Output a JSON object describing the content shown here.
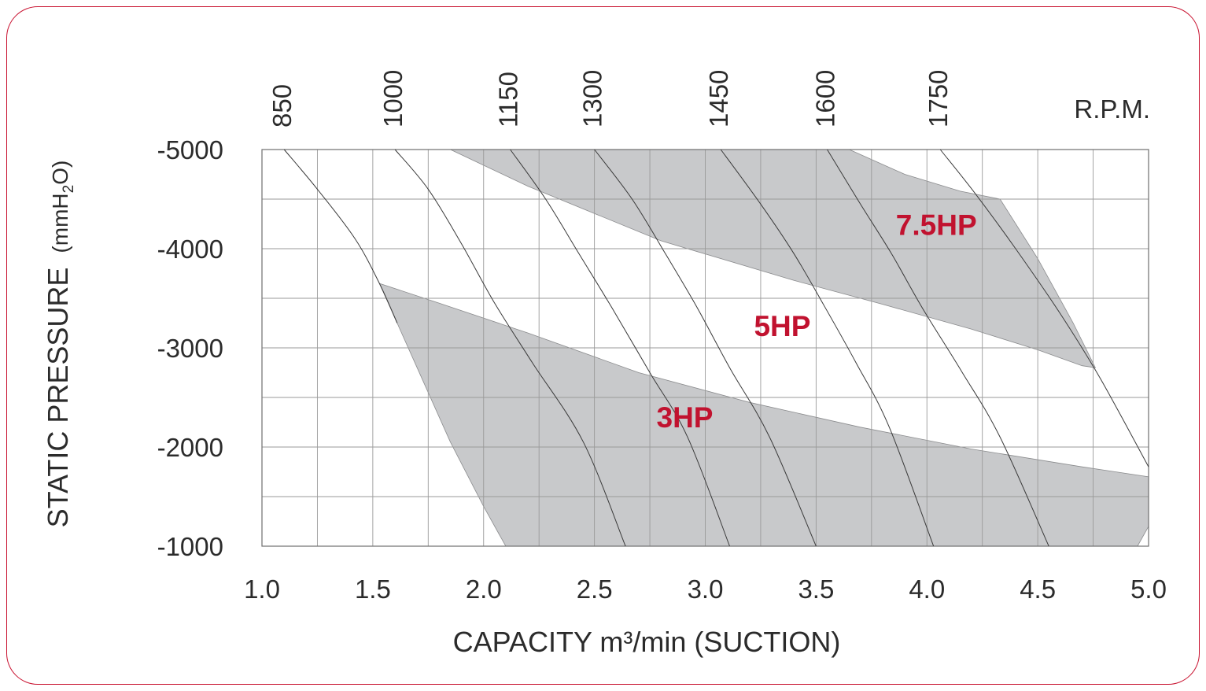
{
  "chart_data": {
    "type": "area",
    "xlabel": "CAPACITY m³/min (SUCTION)",
    "ylabel_main": "STATIC PRESSURE",
    "ylabel_unit_prefix": "(mmH",
    "ylabel_unit_sub": "2",
    "ylabel_unit_suffix": "O)",
    "rpm_label": "R.P.M.",
    "xlim": [
      1.0,
      5.0
    ],
    "ylim": [
      -1000,
      -5000
    ],
    "grid": true,
    "x_ticks": [
      "1.0",
      "1.5",
      "2.0",
      "2.5",
      "3.0",
      "3.5",
      "4.0",
      "4.5",
      "5.0"
    ],
    "x_tick_values": [
      1.0,
      1.5,
      2.0,
      2.5,
      3.0,
      3.5,
      4.0,
      4.5,
      5.0
    ],
    "y_ticks": [
      "-5000",
      "-4000",
      "-3000",
      "-2000",
      "-1000"
    ],
    "y_tick_values": [
      -5000,
      -4000,
      -3000,
      -2000,
      -1000
    ],
    "x_minor_step": 0.25,
    "y_minor_step": 500,
    "rpm_curves": [
      {
        "label": "850",
        "top_x": 1.1,
        "points": [
          [
            1.1,
            -5000
          ],
          [
            1.25,
            -4600
          ],
          [
            1.42,
            -4100
          ],
          [
            1.53,
            -3650
          ],
          [
            1.61,
            -3250
          ]
        ]
      },
      {
        "label": "1000",
        "top_x": 1.6,
        "points": [
          [
            1.6,
            -5000
          ],
          [
            1.75,
            -4600
          ],
          [
            1.9,
            -4050
          ],
          [
            2.05,
            -3450
          ],
          [
            2.22,
            -2850
          ],
          [
            2.45,
            -2050
          ],
          [
            2.64,
            -1000
          ]
        ]
      },
      {
        "label": "1150",
        "top_x": 2.12,
        "points": [
          [
            2.12,
            -5000
          ],
          [
            2.28,
            -4500
          ],
          [
            2.43,
            -3950
          ],
          [
            2.58,
            -3400
          ],
          [
            2.75,
            -2750
          ],
          [
            2.92,
            -2100
          ],
          [
            3.11,
            -1000
          ]
        ]
      },
      {
        "label": "1300",
        "top_x": 2.5,
        "points": [
          [
            2.5,
            -5000
          ],
          [
            2.67,
            -4500
          ],
          [
            2.82,
            -3950
          ],
          [
            2.96,
            -3420
          ],
          [
            3.11,
            -2800
          ],
          [
            3.29,
            -2100
          ],
          [
            3.5,
            -1000
          ]
        ]
      },
      {
        "label": "1450",
        "top_x": 3.07,
        "points": [
          [
            3.07,
            -5000
          ],
          [
            3.25,
            -4450
          ],
          [
            3.4,
            -3950
          ],
          [
            3.53,
            -3450
          ],
          [
            3.68,
            -2850
          ],
          [
            3.83,
            -2200
          ],
          [
            4.03,
            -1000
          ]
        ]
      },
      {
        "label": "1600",
        "top_x": 3.55,
        "points": [
          [
            3.55,
            -5000
          ],
          [
            3.7,
            -4450
          ],
          [
            3.84,
            -3950
          ],
          [
            3.98,
            -3400
          ],
          [
            4.16,
            -2750
          ],
          [
            4.33,
            -2100
          ],
          [
            4.55,
            -1000
          ]
        ]
      },
      {
        "label": "1750",
        "top_x": 4.06,
        "points": [
          [
            4.06,
            -5000
          ],
          [
            4.22,
            -4550
          ],
          [
            4.4,
            -4000
          ],
          [
            4.6,
            -3350
          ],
          [
            4.78,
            -2700
          ],
          [
            5.0,
            -1800
          ]
        ]
      }
    ],
    "hp_regions": [
      {
        "name": "3HP",
        "label_xy": [
          2.78,
          -2200
        ],
        "points": [
          [
            1.53,
            -3650
          ],
          [
            1.8,
            -3450
          ],
          [
            2.2,
            -3150
          ],
          [
            2.7,
            -2750
          ],
          [
            3.2,
            -2450
          ],
          [
            3.7,
            -2200
          ],
          [
            4.2,
            -1980
          ],
          [
            4.7,
            -1800
          ],
          [
            5.0,
            -1700
          ],
          [
            5.0,
            -1200
          ],
          [
            4.95,
            -1000
          ],
          [
            2.1,
            -1000
          ],
          [
            2.0,
            -1400
          ],
          [
            1.85,
            -2050
          ],
          [
            1.7,
            -2800
          ]
        ]
      },
      {
        "name": "5HP",
        "label_xy": [
          3.22,
          -3120
        ],
        "points": []
      },
      {
        "name": "7.5HP",
        "label_xy": [
          3.86,
          -4140
        ],
        "points": [
          [
            1.85,
            -5000
          ],
          [
            3.65,
            -5000
          ],
          [
            3.9,
            -4750
          ],
          [
            4.15,
            -4580
          ],
          [
            4.33,
            -4500
          ],
          [
            4.5,
            -3900
          ],
          [
            4.66,
            -3250
          ],
          [
            4.76,
            -2800
          ],
          [
            4.7,
            -2820
          ],
          [
            4.5,
            -2980
          ],
          [
            4.2,
            -3190
          ],
          [
            3.8,
            -3440
          ],
          [
            3.4,
            -3680
          ],
          [
            2.8,
            -4080
          ],
          [
            2.2,
            -4630
          ]
        ]
      }
    ],
    "colors": {
      "region_fill": "#c8c9cb",
      "region_stroke": "#8a8b8d",
      "grid": "#9a9a9a",
      "curve": "#3a3a3a",
      "hp_label": "#c1122f",
      "frame": "#c8102e"
    }
  }
}
